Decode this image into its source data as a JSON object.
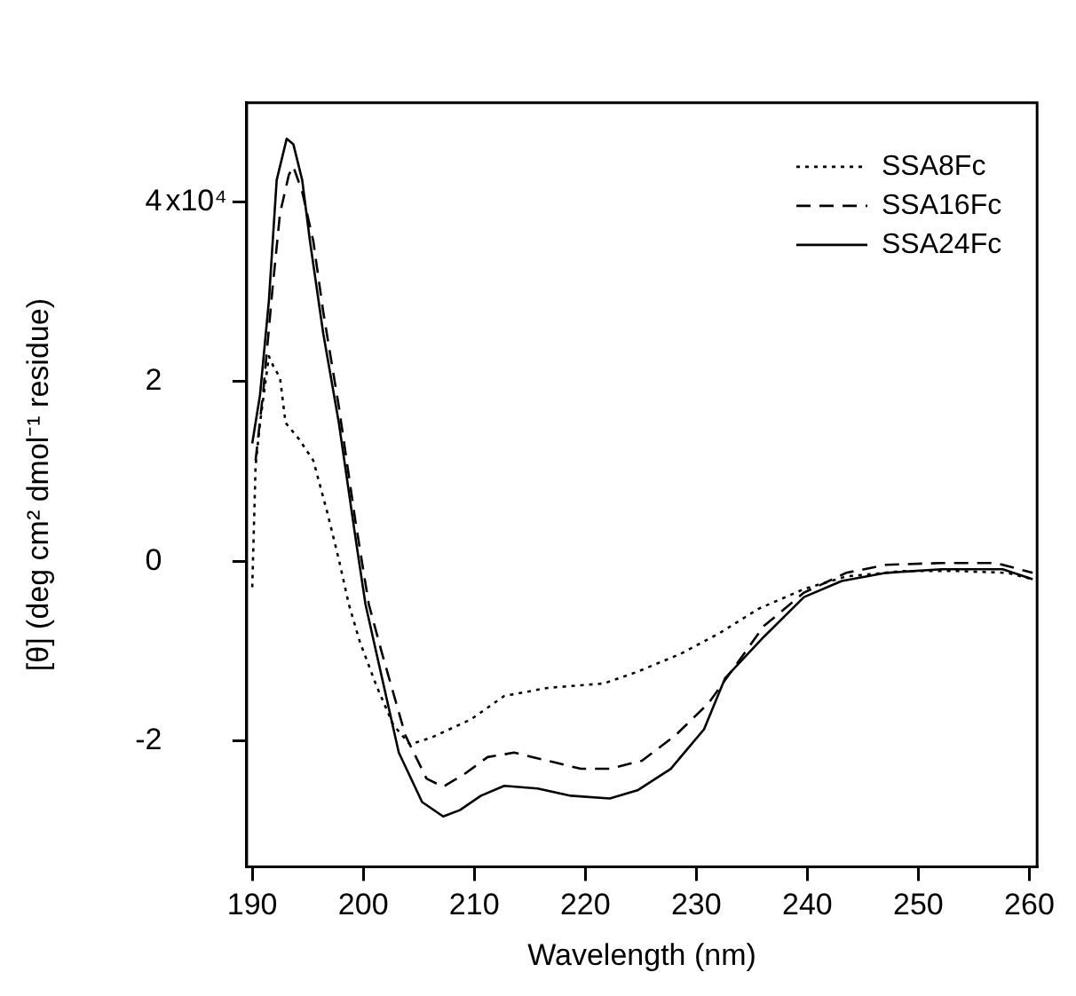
{
  "chart_data": {
    "type": "line",
    "xlabel": "Wavelength (nm)",
    "ylabel": "[θ] (deg cm² dmol⁻¹ residue)",
    "xlim": [
      189.5,
      260.7
    ],
    "xticks": [
      190,
      200,
      210,
      220,
      230,
      240,
      250,
      260
    ],
    "ylim": [
      -3.4,
      5.1
    ],
    "yticks": [
      -2,
      0,
      2,
      4
    ],
    "annotations": [
      "x10⁴"
    ],
    "grid": false,
    "legend": "top right",
    "marker": "none",
    "series": [
      {
        "name": "SSA8Fc",
        "color": "#000000",
        "line_style": "dotted",
        "x": [
          190,
          190.3,
          190.7,
          191.5,
          191.9,
          192.5,
          193,
          194.2,
          195.5,
          196.7,
          197.8,
          198.7,
          199.7,
          201.2,
          202.7,
          204.2,
          206.2,
          209.7,
          212.7,
          216.6,
          221.7,
          224.7,
          228.6,
          232.1,
          235.6,
          239.7,
          243.5,
          248.6,
          253.6,
          258,
          260.3
        ],
        "values": [
          -0.29,
          1.06,
          1.54,
          2.28,
          2.17,
          2.04,
          1.54,
          1.36,
          1.12,
          0.57,
          0.02,
          -0.48,
          -0.9,
          -1.39,
          -1.82,
          -2.04,
          -1.96,
          -1.76,
          -1.5,
          -1.41,
          -1.36,
          -1.23,
          -1.03,
          -0.8,
          -0.53,
          -0.31,
          -0.17,
          -0.11,
          -0.11,
          -0.13,
          -0.2
        ]
      },
      {
        "name": "SSA16Fc",
        "color": "#000000",
        "line_style": "dashed",
        "x": [
          190.3,
          191,
          191.8,
          192.5,
          193.3,
          193.7,
          194.5,
          195.5,
          196.4,
          197.8,
          199.3,
          200.5,
          201.7,
          203.8,
          205.7,
          207.2,
          209.1,
          211.2,
          213.6,
          216.6,
          219.6,
          222.2,
          225.1,
          228.1,
          231.1,
          236.1,
          239.7,
          243.5,
          247.1,
          252.1,
          257,
          260.3
        ],
        "values": [
          1.12,
          1.9,
          3.0,
          3.87,
          4.3,
          4.39,
          4.11,
          3.56,
          2.77,
          1.72,
          0.44,
          -0.48,
          -1.03,
          -1.94,
          -2.42,
          -2.51,
          -2.37,
          -2.18,
          -2.13,
          -2.22,
          -2.31,
          -2.31,
          -2.22,
          -1.94,
          -1.58,
          -0.72,
          -0.35,
          -0.13,
          -0.04,
          -0.02,
          -0.02,
          -0.13
        ]
      },
      {
        "name": "SSA24Fc",
        "color": "#000000",
        "line_style": "solid",
        "x": [
          190,
          190.7,
          191.5,
          192.2,
          193.1,
          193.7,
          194.5,
          195.2,
          196.4,
          197.8,
          199.3,
          200.2,
          201.2,
          203.2,
          205.3,
          207.2,
          208.7,
          210.6,
          212.7,
          215.7,
          218.7,
          222.2,
          224.7,
          227.7,
          230.7,
          232.6,
          236.1,
          239.7,
          243.1,
          247.1,
          252.1,
          257.6,
          260.3
        ],
        "values": [
          1.31,
          1.85,
          2.9,
          4.24,
          4.7,
          4.64,
          4.24,
          3.56,
          2.53,
          1.54,
          0.26,
          -0.48,
          -1.03,
          -2.13,
          -2.68,
          -2.84,
          -2.77,
          -2.61,
          -2.5,
          -2.53,
          -2.61,
          -2.64,
          -2.55,
          -2.31,
          -1.87,
          -1.3,
          -0.84,
          -0.4,
          -0.22,
          -0.13,
          -0.09,
          -0.09,
          -0.2
        ]
      }
    ]
  }
}
